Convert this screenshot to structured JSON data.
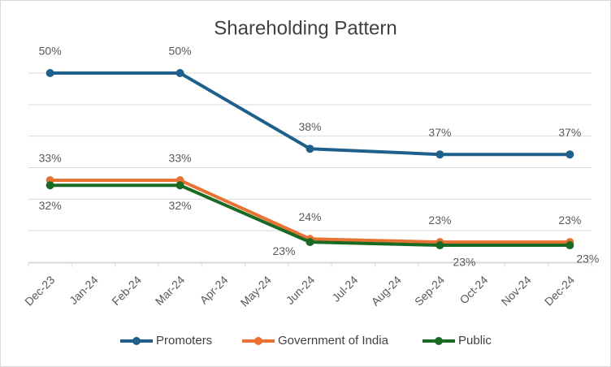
{
  "chart_data": {
    "type": "line",
    "title": "Shareholding Pattern",
    "categories": [
      "Dec-23",
      "Jan-24",
      "Feb-24",
      "Mar-24",
      "Apr-24",
      "May-24",
      "Jun-24",
      "Jul-24",
      "Aug-24",
      "Sep-24",
      "Oct-24",
      "Nov-24",
      "Dec-24"
    ],
    "x": [
      "Dec-23",
      "Mar-24",
      "Jun-24",
      "Sep-24",
      "Dec-24"
    ],
    "series": [
      {
        "name": "Promoters",
        "color": "#1f5f8b",
        "values": [
          50,
          50,
          38,
          37.1,
          37.1
        ],
        "value_labels": [
          "50%",
          "50%",
          "38%",
          "37%",
          "37%"
        ]
      },
      {
        "name": "Government of India",
        "color": "#e97132",
        "values": [
          33,
          33,
          23.7,
          23.2,
          23.2
        ],
        "value_labels": [
          "33%",
          "33%",
          "24%",
          "23%",
          "23%"
        ]
      },
      {
        "name": "Public",
        "color": "#196b24",
        "values": [
          32.2,
          32.2,
          23.2,
          22.7,
          22.7
        ],
        "value_labels": [
          "32%",
          "32%",
          "23%",
          "23%",
          "23%"
        ]
      }
    ],
    "ylim": [
      20,
      50
    ],
    "yticks": [
      20,
      25,
      30,
      35,
      40,
      45,
      50
    ],
    "grid": true
  }
}
